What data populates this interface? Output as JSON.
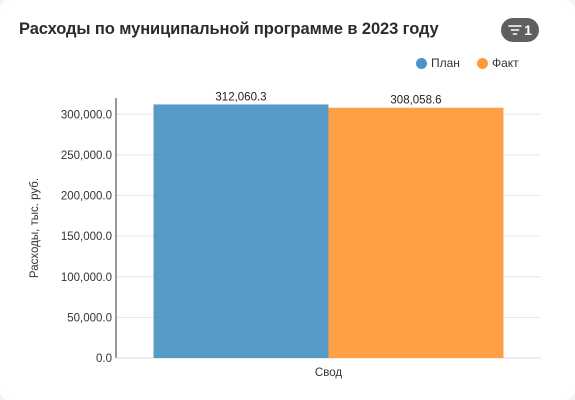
{
  "header": {
    "title": "Расходы по муниципальной программе в 2023 году",
    "filter_count": "1"
  },
  "colors": {
    "plan": "#4a93c4",
    "fact": "#ff9838",
    "filter_bg": "#5f5f5f"
  },
  "icons": {
    "filter": "filter-lines-icon"
  },
  "chart_data": {
    "type": "bar",
    "title": "Расходы по муниципальной программе в 2023 году",
    "categories": [
      "Свод"
    ],
    "series": [
      {
        "name": "План",
        "values": [
          312060.3
        ],
        "labels": [
          "312,060.3"
        ],
        "color": "#4a93c4"
      },
      {
        "name": "Факт",
        "values": [
          308058.6
        ],
        "labels": [
          "308,058.6"
        ],
        "color": "#ff9838"
      }
    ],
    "xlabel": "",
    "ylabel": "Расходы, тыс. руб.",
    "ylim": [
      0,
      320000
    ],
    "yticks": [
      0,
      50000,
      100000,
      150000,
      200000,
      250000,
      300000
    ],
    "ytick_labels": [
      "0.0",
      "50,000.0",
      "100,000.0",
      "150,000.0",
      "200,000.0",
      "250,000.0",
      "300,000.0"
    ],
    "grid": true,
    "legend_position": "top-right"
  }
}
